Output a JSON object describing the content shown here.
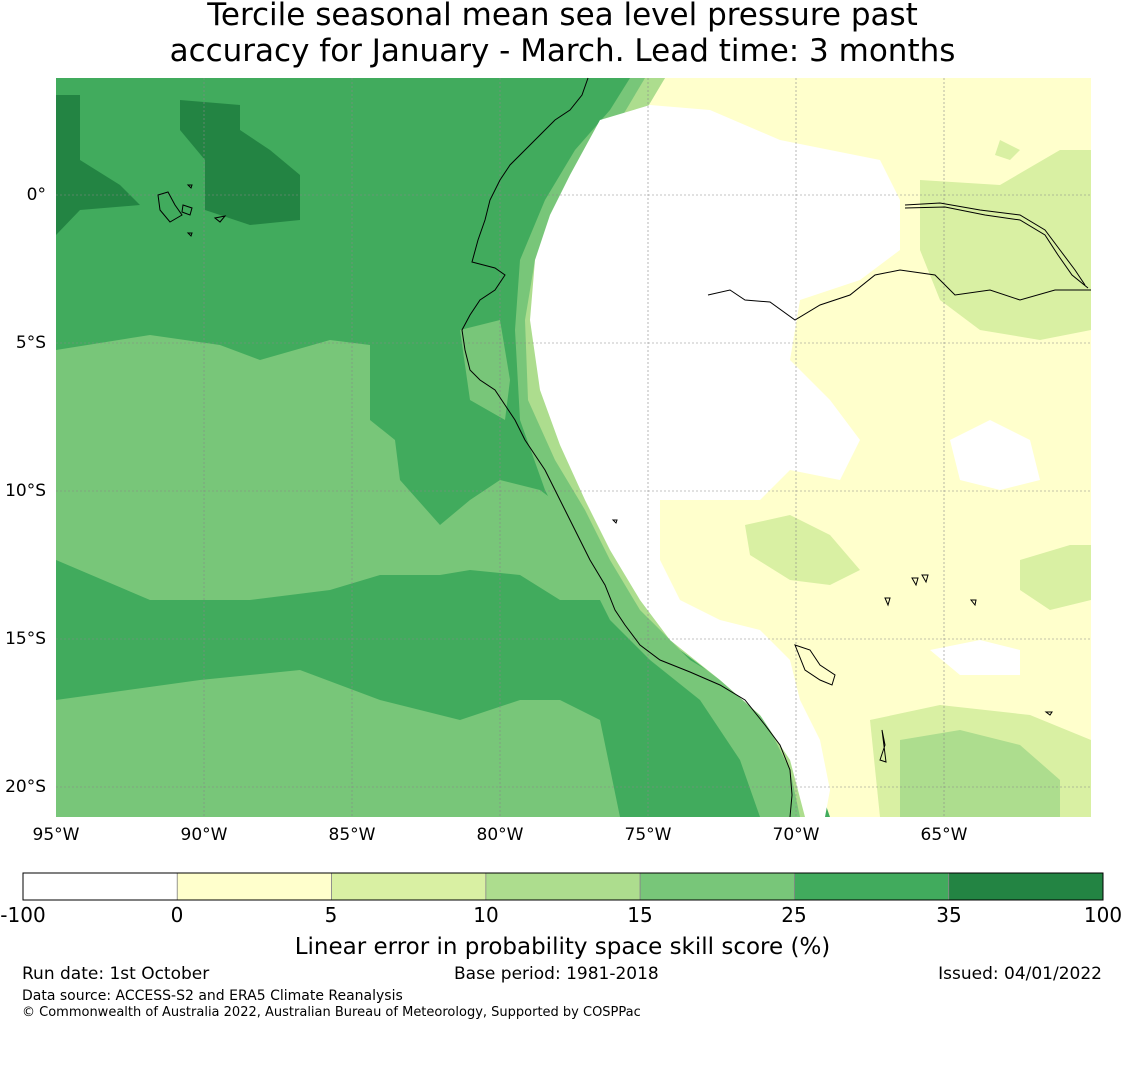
{
  "title_line1": "Tercile seasonal mean sea level pressure past",
  "title_line2": "accuracy for January - March. Lead time: 3 months",
  "lat_labels": [
    "0°",
    "5°S",
    "10°S",
    "15°S",
    "20°S"
  ],
  "lon_labels": [
    "95°W",
    "90°W",
    "85°W",
    "80°W",
    "75°W",
    "70°W",
    "65°W"
  ],
  "colorbar": {
    "ticks": [
      "-100",
      "0",
      "5",
      "10",
      "15",
      "25",
      "35",
      "100"
    ],
    "colors": [
      "#ffffff",
      "#ffffcc",
      "#d9f0a3",
      "#addd8e",
      "#78c679",
      "#41ab5d",
      "#238443"
    ],
    "label": "Linear error in probability space skill score (%)"
  },
  "footer": {
    "run_date": "Run date: 1st October",
    "base_period": "Base period: 1981-2018",
    "issued": "Issued: 04/01/2022",
    "data_source": "Data source: ACCESS-S2 and ERA5 Climate Reanalysis",
    "copyright": "© Commonwealth of Australia 2022, Australian Bureau of Meteorology, Supported by COSPPac"
  }
}
